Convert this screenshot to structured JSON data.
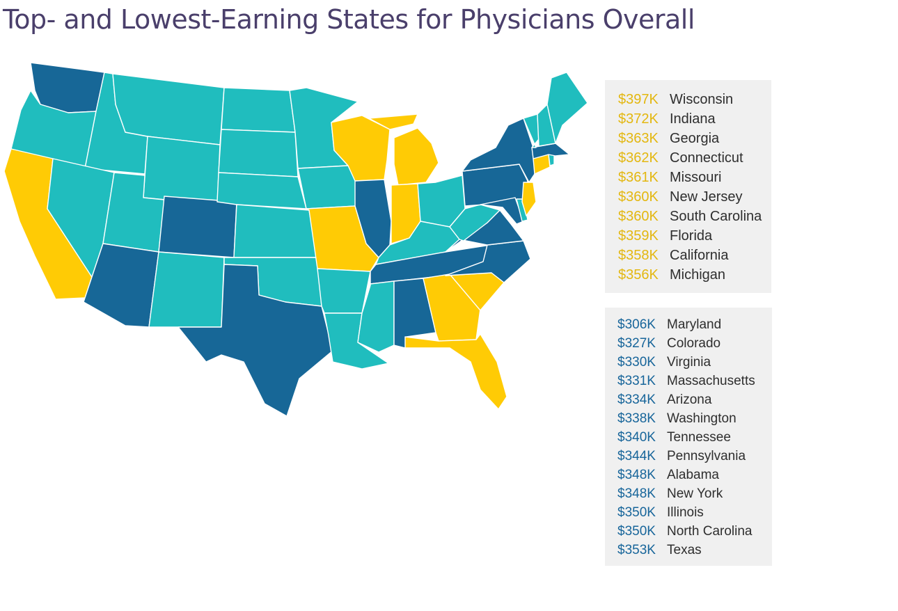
{
  "title": "Top- and Lowest-Earning States for Physicians Overall",
  "colors": {
    "top_earning": "#ffcb05",
    "lowest_earning": "#176797",
    "other": "#20bdbe",
    "top_amount_text": "#e3b710",
    "lowest_amount_text": "#17659a",
    "title_text": "#4a3f6b"
  },
  "map": {
    "region": "Contiguous United States",
    "top_earning_states": [
      "Wisconsin",
      "Indiana",
      "Georgia",
      "Connecticut",
      "Missouri",
      "New Jersey",
      "South Carolina",
      "Florida",
      "California",
      "Michigan"
    ],
    "lowest_earning_states": [
      "Maryland",
      "Colorado",
      "Virginia",
      "Massachusetts",
      "Arizona",
      "Washington",
      "Tennessee",
      "Pennsylvania",
      "Alabama",
      "New York",
      "Illinois",
      "North Carolina",
      "Texas"
    ]
  },
  "top_earning": [
    {
      "amount": "$397K",
      "state": "Wisconsin"
    },
    {
      "amount": "$372K",
      "state": "Indiana"
    },
    {
      "amount": "$363K",
      "state": "Georgia"
    },
    {
      "amount": "$362K",
      "state": "Connecticut"
    },
    {
      "amount": "$361K",
      "state": "Missouri"
    },
    {
      "amount": "$360K",
      "state": "New Jersey"
    },
    {
      "amount": "$360K",
      "state": "South Carolina"
    },
    {
      "amount": "$359K",
      "state": "Florida"
    },
    {
      "amount": "$358K",
      "state": "California"
    },
    {
      "amount": "$356K",
      "state": "Michigan"
    }
  ],
  "lowest_earning": [
    {
      "amount": "$306K",
      "state": "Maryland"
    },
    {
      "amount": "$327K",
      "state": "Colorado"
    },
    {
      "amount": "$330K",
      "state": "Virginia"
    },
    {
      "amount": "$331K",
      "state": "Massachusetts"
    },
    {
      "amount": "$334K",
      "state": "Arizona"
    },
    {
      "amount": "$338K",
      "state": "Washington"
    },
    {
      "amount": "$340K",
      "state": "Tennessee"
    },
    {
      "amount": "$344K",
      "state": "Pennsylvania"
    },
    {
      "amount": "$348K",
      "state": "Alabama"
    },
    {
      "amount": "$348K",
      "state": "New York"
    },
    {
      "amount": "$350K",
      "state": "Illinois"
    },
    {
      "amount": "$350K",
      "state": "North Carolina"
    },
    {
      "amount": "$353K",
      "state": "Texas"
    }
  ]
}
